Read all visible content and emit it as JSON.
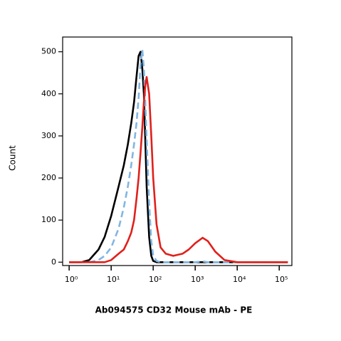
{
  "chart_data": {
    "type": "line",
    "xlabel": "Ab094575 CD32 Mouse mAb - PE",
    "ylabel": "Count",
    "xscale": "log",
    "x": [
      1,
      2,
      3,
      5,
      7,
      10,
      15,
      20,
      25,
      30,
      35,
      40,
      45,
      50,
      55,
      60,
      65,
      70,
      80,
      90,
      100,
      120,
      150,
      200,
      300,
      500,
      700,
      1000,
      1500,
      2000,
      3000,
      5000,
      10000,
      100000,
      160000
    ],
    "series": [
      {
        "color": "#000000",
        "dash": false,
        "values": [
          0,
          0,
          5,
          30,
          60,
          110,
          180,
          230,
          280,
          330,
          380,
          440,
          490,
          500,
          460,
          400,
          290,
          180,
          60,
          15,
          3,
          0,
          0,
          0,
          0,
          0,
          0,
          0,
          0,
          0,
          0,
          0,
          0,
          0,
          0
        ]
      },
      {
        "color": "#82b6e2",
        "dash": true,
        "values": [
          0,
          0,
          0,
          5,
          15,
          35,
          80,
          130,
          180,
          230,
          280,
          330,
          390,
          470,
          505,
          460,
          380,
          290,
          140,
          50,
          15,
          3,
          0,
          0,
          0,
          0,
          0,
          0,
          2,
          0,
          0,
          0,
          0,
          0,
          0
        ]
      },
      {
        "color": "#e0201b",
        "dash": false,
        "values": [
          0,
          0,
          0,
          0,
          0,
          5,
          20,
          30,
          50,
          70,
          100,
          150,
          200,
          260,
          320,
          380,
          420,
          440,
          400,
          300,
          200,
          90,
          35,
          20,
          15,
          20,
          30,
          45,
          58,
          50,
          25,
          5,
          0,
          0,
          0
        ]
      }
    ],
    "xlim": [
      0.7,
      200000
    ],
    "ylim": [
      -8,
      535
    ],
    "xticks": [
      {
        "value": 1,
        "label": "10⁰"
      },
      {
        "value": 10,
        "label": "10¹"
      },
      {
        "value": 100,
        "label": "10²"
      },
      {
        "value": 1000,
        "label": "10³"
      },
      {
        "value": 10000,
        "label": "10⁴"
      },
      {
        "value": 100000,
        "label": "10⁵"
      }
    ],
    "yticks": [
      0,
      100,
      200,
      300,
      400,
      500
    ]
  }
}
